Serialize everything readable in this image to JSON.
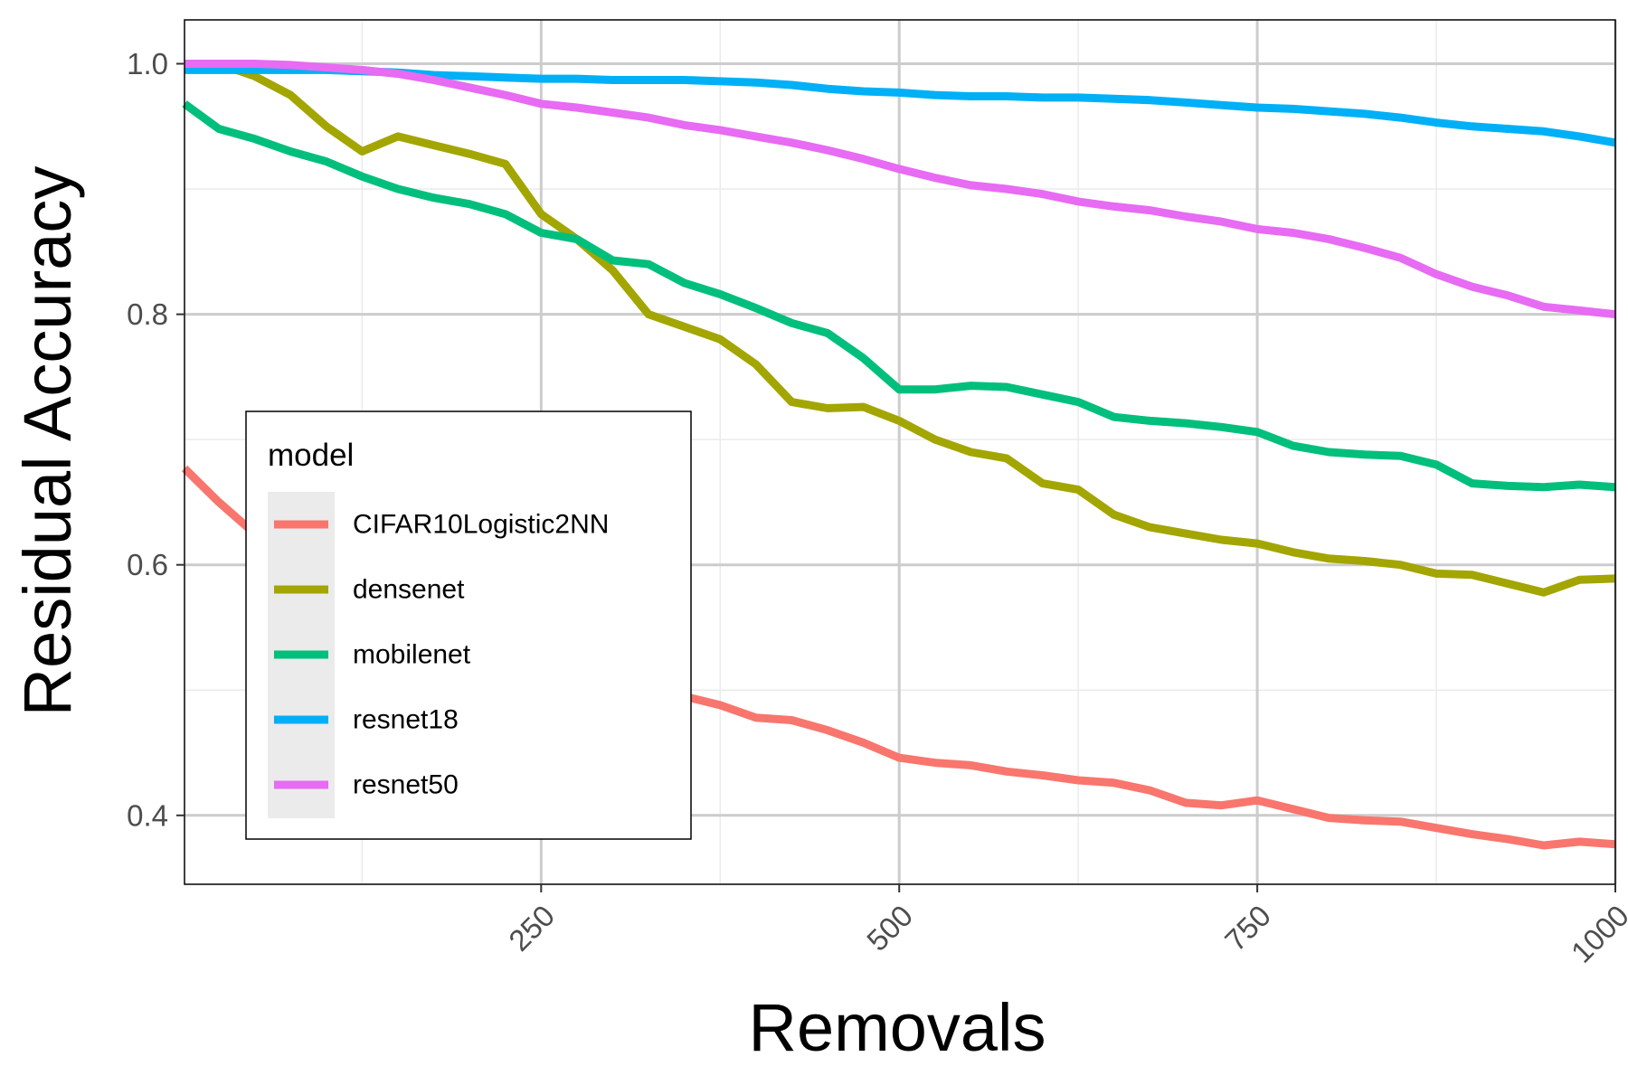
{
  "chart_data": {
    "type": "line",
    "title": "",
    "xlabel": "Removals",
    "ylabel": "Residual Accuracy",
    "xlim": [
      1,
      1000
    ],
    "ylim": [
      0.345,
      1.035
    ],
    "x_ticks": [
      250,
      500,
      750,
      1000
    ],
    "x_tick_labels": [
      "250",
      "500",
      "750",
      "1000"
    ],
    "y_ticks": [
      0.4,
      0.6,
      0.8,
      1.0
    ],
    "y_tick_labels": [
      "0.4",
      "0.6",
      "0.8",
      "1.0"
    ],
    "grid": true,
    "legend": {
      "title": "model",
      "position": "lower-left inside"
    },
    "x": [
      1,
      25,
      50,
      75,
      100,
      125,
      150,
      175,
      200,
      225,
      250,
      275,
      300,
      325,
      350,
      375,
      400,
      425,
      450,
      475,
      500,
      525,
      550,
      575,
      600,
      625,
      650,
      675,
      700,
      725,
      750,
      775,
      800,
      825,
      850,
      875,
      900,
      925,
      950,
      975,
      1000
    ],
    "series": [
      {
        "name": "CIFAR10Logistic2NN",
        "color": "#F8766D",
        "values": [
          0.677,
          0.65,
          0.625,
          0.605,
          0.585,
          0.57,
          0.555,
          0.542,
          0.53,
          0.52,
          0.512,
          0.508,
          0.503,
          0.498,
          0.495,
          0.488,
          0.478,
          0.476,
          0.468,
          0.458,
          0.446,
          0.442,
          0.44,
          0.435,
          0.432,
          0.428,
          0.426,
          0.42,
          0.41,
          0.408,
          0.412,
          0.405,
          0.398,
          0.396,
          0.395,
          0.39,
          0.385,
          0.381,
          0.376,
          0.379,
          0.377
        ]
      },
      {
        "name": "densenet",
        "color": "#A3A500",
        "values": [
          1.0,
          1.0,
          0.99,
          0.975,
          0.95,
          0.93,
          0.942,
          0.935,
          0.928,
          0.92,
          0.88,
          0.86,
          0.835,
          0.8,
          0.79,
          0.78,
          0.76,
          0.73,
          0.725,
          0.726,
          0.715,
          0.7,
          0.69,
          0.685,
          0.665,
          0.66,
          0.64,
          0.63,
          0.625,
          0.62,
          0.617,
          0.61,
          0.605,
          0.603,
          0.6,
          0.593,
          0.592,
          0.585,
          0.578,
          0.588,
          0.589
        ]
      },
      {
        "name": "mobilenet",
        "color": "#00BF7D",
        "values": [
          0.968,
          0.948,
          0.94,
          0.93,
          0.922,
          0.91,
          0.9,
          0.893,
          0.888,
          0.88,
          0.865,
          0.86,
          0.843,
          0.84,
          0.825,
          0.816,
          0.805,
          0.793,
          0.785,
          0.765,
          0.74,
          0.74,
          0.743,
          0.742,
          0.736,
          0.73,
          0.718,
          0.715,
          0.713,
          0.71,
          0.706,
          0.695,
          0.69,
          0.688,
          0.687,
          0.68,
          0.665,
          0.663,
          0.662,
          0.664,
          0.662
        ]
      },
      {
        "name": "resnet18",
        "color": "#00B0F6",
        "values": [
          0.995,
          0.995,
          0.995,
          0.995,
          0.995,
          0.994,
          0.993,
          0.991,
          0.99,
          0.989,
          0.988,
          0.988,
          0.987,
          0.987,
          0.987,
          0.986,
          0.985,
          0.983,
          0.98,
          0.978,
          0.977,
          0.975,
          0.974,
          0.974,
          0.973,
          0.973,
          0.972,
          0.971,
          0.969,
          0.967,
          0.965,
          0.964,
          0.962,
          0.96,
          0.957,
          0.953,
          0.95,
          0.948,
          0.946,
          0.942,
          0.937
        ]
      },
      {
        "name": "resnet50",
        "color": "#E76BF3",
        "values": [
          1.0,
          1.0,
          1.0,
          0.999,
          0.997,
          0.995,
          0.992,
          0.987,
          0.981,
          0.975,
          0.968,
          0.965,
          0.961,
          0.957,
          0.951,
          0.947,
          0.942,
          0.937,
          0.931,
          0.924,
          0.916,
          0.909,
          0.903,
          0.9,
          0.896,
          0.89,
          0.886,
          0.883,
          0.878,
          0.874,
          0.868,
          0.865,
          0.86,
          0.853,
          0.845,
          0.832,
          0.822,
          0.815,
          0.806,
          0.803,
          0.8
        ]
      }
    ]
  }
}
